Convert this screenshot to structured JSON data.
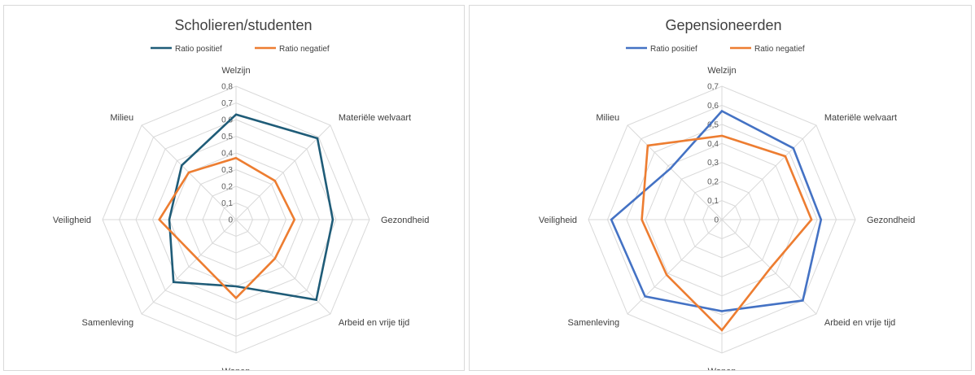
{
  "chart_data": [
    {
      "type": "radar",
      "title": "Scholieren/studenten",
      "categories": [
        "Welzijn",
        "Materiële welvaart",
        "Gezondheid",
        "Arbeid en vrije tijd",
        "Wonen",
        "Samenleving",
        "Veiligheid",
        "Milieu"
      ],
      "rlim": [
        0,
        0.8
      ],
      "ticks": [
        "0",
        "0,1",
        "0,2",
        "0,3",
        "0,4",
        "0,5",
        "0,6",
        "0,7",
        "0,8"
      ],
      "legend_position": "top",
      "grid": true,
      "series": [
        {
          "name": "Ratio positief",
          "color": "#1f5c78",
          "values": [
            0.63,
            0.69,
            0.58,
            0.68,
            0.4,
            0.53,
            0.4,
            0.46
          ]
        },
        {
          "name": "Ratio negatief",
          "color": "#ed7d31",
          "values": [
            0.37,
            0.33,
            0.35,
            0.33,
            0.47,
            0.33,
            0.46,
            0.4
          ]
        }
      ]
    },
    {
      "type": "radar",
      "title": "Gepensioneerden",
      "categories": [
        "Welzijn",
        "Materiële welvaart",
        "Gezondheid",
        "Arbeid en vrije tijd",
        "Wonen",
        "Samenleving",
        "Veiligheid",
        "Milieu"
      ],
      "rlim": [
        0,
        0.7
      ],
      "ticks": [
        "0",
        "0,1",
        "0,2",
        "0,3",
        "0,4",
        "0,5",
        "0,6",
        "0,7"
      ],
      "legend_position": "top",
      "grid": true,
      "series": [
        {
          "name": "Ratio positief",
          "color": "#4472c4",
          "values": [
            0.57,
            0.53,
            0.52,
            0.6,
            0.48,
            0.57,
            0.58,
            0.38
          ]
        },
        {
          "name": "Ratio negatief",
          "color": "#ed7d31",
          "values": [
            0.44,
            0.47,
            0.47,
            0.36,
            0.58,
            0.41,
            0.42,
            0.55
          ]
        }
      ]
    }
  ]
}
